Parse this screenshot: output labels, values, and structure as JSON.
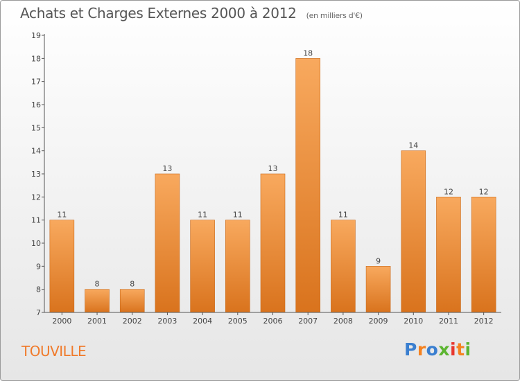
{
  "title": "Achats et Charges Externes 2000 à 2012",
  "subtitle": "(en milliers d'€)",
  "commune": "TOUVILLE",
  "logo": {
    "letters": [
      "P",
      "r",
      "o",
      "x",
      "i",
      "t",
      "i"
    ],
    "colors": [
      "#3a7fd0",
      "#f58220",
      "#3a7fd0",
      "#5cb531",
      "#e8372e",
      "#f58220",
      "#5cb531"
    ]
  },
  "colors": {
    "bar_light": "#f8a95e",
    "bar_dark": "#d9731d",
    "bar_edge": "#c86a1c"
  },
  "chart_data": {
    "type": "bar",
    "categories": [
      "2000",
      "2001",
      "2002",
      "2003",
      "2004",
      "2005",
      "2006",
      "2007",
      "2008",
      "2009",
      "2010",
      "2011",
      "2012"
    ],
    "values": [
      11,
      8,
      8,
      13,
      11,
      11,
      13,
      18,
      11,
      9,
      14,
      12,
      12
    ],
    "ylim": [
      7,
      19
    ],
    "yticks": [
      7,
      8,
      9,
      10,
      11,
      12,
      13,
      14,
      15,
      16,
      17,
      18,
      19
    ],
    "grid": false
  }
}
